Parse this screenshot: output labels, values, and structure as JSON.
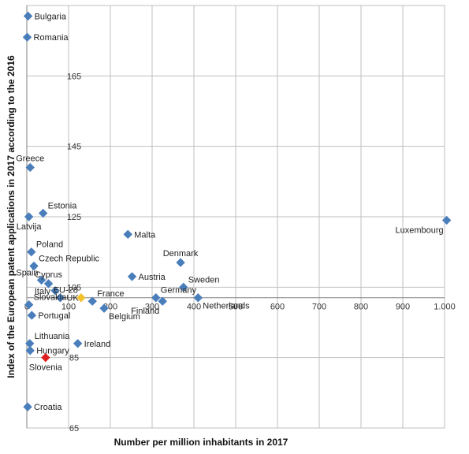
{
  "chart_data": {
    "type": "scatter",
    "title": "",
    "xlabel": "Number per million inhabitants in 2017",
    "ylabel": "Index of the European patent applications in 2017  according to the 2016",
    "xlim": [
      0,
      1000
    ],
    "ylim": [
      65,
      185
    ],
    "x_ticks": [
      0,
      100,
      200,
      300,
      400,
      500,
      600,
      700,
      800,
      900,
      1000
    ],
    "x_tick_labels": [
      "0",
      "100",
      "200",
      "300",
      "400",
      "500",
      "600",
      "700",
      "800",
      "900",
      "1.000"
    ],
    "y_ticks": [
      65,
      85,
      105,
      125,
      145,
      165
    ],
    "y_tick_labels": [
      "65",
      "85",
      "105",
      "125",
      "145",
      "165"
    ],
    "grid": "vertical and horizontal gridlines",
    "colors": {
      "default": "#4a7ebb",
      "eu28": "#f2c12e",
      "slovenia": "#e02020"
    },
    "points": [
      {
        "name": "Bulgaria",
        "x": 3,
        "y": 182,
        "label_pos": "right",
        "color": "default"
      },
      {
        "name": "Romania",
        "x": 1,
        "y": 176,
        "label_pos": "right",
        "color": "default"
      },
      {
        "name": "Greece",
        "x": 8,
        "y": 139,
        "label_pos": "above",
        "color": "default"
      },
      {
        "name": "Estonia",
        "x": 39,
        "y": 126,
        "label_pos": "above-right",
        "color": "default"
      },
      {
        "name": "Latvija",
        "x": 5,
        "y": 125,
        "label_pos": "below",
        "color": "default"
      },
      {
        "name": "Malta",
        "x": 242,
        "y": 120,
        "label_pos": "right",
        "color": "default"
      },
      {
        "name": "Luxembourg",
        "x": 1005,
        "y": 124,
        "label_pos": "below-left",
        "color": "default"
      },
      {
        "name": "Poland",
        "x": 11,
        "y": 115,
        "label_pos": "above-right",
        "color": "default"
      },
      {
        "name": "Denmark",
        "x": 368,
        "y": 112,
        "label_pos": "above",
        "color": "default"
      },
      {
        "name": "Czech Republic",
        "x": 17,
        "y": 111,
        "label_pos": "above-right",
        "color": "default"
      },
      {
        "name": "Spain",
        "x": 35,
        "y": 107,
        "label_pos": "above-left",
        "color": "default"
      },
      {
        "name": "Cyprus",
        "x": 52,
        "y": 106,
        "label_pos": "above",
        "color": "default"
      },
      {
        "name": "Austria",
        "x": 252,
        "y": 108,
        "label_pos": "right",
        "color": "default"
      },
      {
        "name": "EU-28",
        "x": 130,
        "y": 102,
        "label_pos": "above-left",
        "color": "eu28"
      },
      {
        "name": "Italy",
        "x": 68,
        "y": 104,
        "label_pos": "left",
        "color": "default"
      },
      {
        "name": "UK",
        "x": 80,
        "y": 102,
        "label_pos": "right",
        "color": "default"
      },
      {
        "name": "France",
        "x": 157,
        "y": 101,
        "label_pos": "above-right",
        "color": "default"
      },
      {
        "name": "Sweden",
        "x": 375,
        "y": 105,
        "label_pos": "above-right",
        "color": "default"
      },
      {
        "name": "Germany",
        "x": 309,
        "y": 102,
        "label_pos": "above-right",
        "color": "default"
      },
      {
        "name": "Finland",
        "x": 325,
        "y": 101,
        "label_pos": "below-left",
        "color": "default"
      },
      {
        "name": "Netherlands",
        "x": 410,
        "y": 102,
        "label_pos": "below-right",
        "color": "default"
      },
      {
        "name": "Belgium",
        "x": 185,
        "y": 99,
        "label_pos": "below-right",
        "color": "default"
      },
      {
        "name": "Slovakia",
        "x": 5,
        "y": 100,
        "label_pos": "above-right",
        "color": "default"
      },
      {
        "name": "Portugal",
        "x": 12,
        "y": 97,
        "label_pos": "right",
        "color": "default"
      },
      {
        "name": "Lithuania",
        "x": 7,
        "y": 89,
        "label_pos": "above-right",
        "color": "default"
      },
      {
        "name": "Ireland",
        "x": 122,
        "y": 89,
        "label_pos": "right",
        "color": "default"
      },
      {
        "name": "Hungary",
        "x": 8,
        "y": 87,
        "label_pos": "right",
        "color": "default"
      },
      {
        "name": "Slovenia",
        "x": 45,
        "y": 85,
        "label_pos": "below",
        "color": "slovenia"
      },
      {
        "name": "Croatia",
        "x": 2,
        "y": 71,
        "label_pos": "right",
        "color": "default"
      }
    ]
  }
}
